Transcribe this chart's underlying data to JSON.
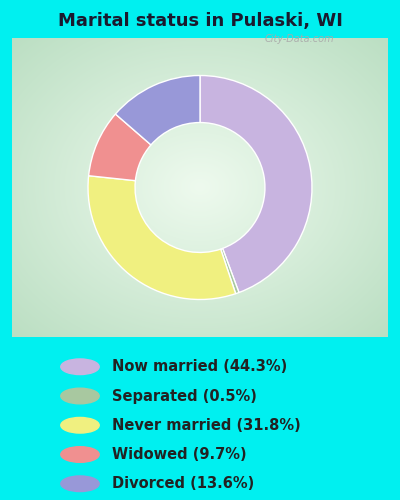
{
  "title": "Marital status in Pulaski, WI",
  "title_color": "#1a1a2e",
  "title_fontsize": 13,
  "bg_cyan": "#00f0f0",
  "chart_bg_corner": "#c8e8d0",
  "chart_bg_center": "#f0faf0",
  "slices": [
    {
      "label": "Now married (44.3%)",
      "value": 44.3,
      "color": "#c8b4e0"
    },
    {
      "label": "Separated (0.5%)",
      "value": 0.5,
      "color": "#a8c8a0"
    },
    {
      "label": "Never married (31.8%)",
      "value": 31.8,
      "color": "#f0f080"
    },
    {
      "label": "Widowed (9.7%)",
      "value": 9.7,
      "color": "#f09090"
    },
    {
      "label": "Divorced (13.6%)",
      "value": 13.6,
      "color": "#9898d8"
    }
  ],
  "donut_width": 0.42,
  "legend_fontsize": 10.5,
  "legend_text_color": "#222222",
  "watermark": "City-Data.com"
}
